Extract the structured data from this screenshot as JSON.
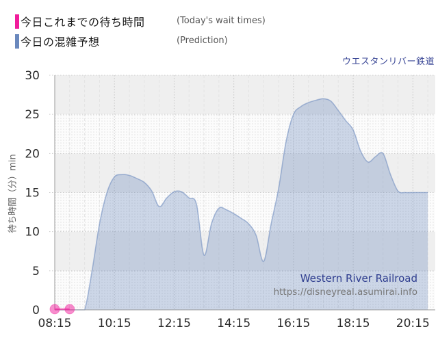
{
  "legend": {
    "items": [
      {
        "label_jp": "今日これまでの待ち時間",
        "label_en": "(Today's wait times)",
        "color": "#f11c9b"
      },
      {
        "label_jp": "今日の混雑予想",
        "label_en": "(Prediction)",
        "color": "#6a88bd"
      }
    ]
  },
  "watermark": {
    "line1": "Western River Railroad",
    "line2": "https://disneyreal.asumirai.info"
  },
  "chart_data": {
    "type": "area",
    "title": "ウエスタンリバー鉄道",
    "ylabel": "待ち時間（分）min",
    "ylim": [
      0,
      30
    ],
    "ytick_interval": 5,
    "yticks": [
      0,
      5,
      10,
      15,
      20,
      25,
      30
    ],
    "x_start": "08:15",
    "x_end": "21:00",
    "xticks": [
      "08:15",
      "10:15",
      "12:15",
      "14:15",
      "16:15",
      "18:15",
      "20:15"
    ],
    "grid": "30min-vertical, 5min-horizontal, alternating bands",
    "legend_position": "top-left",
    "series": [
      {
        "name": "今日これまでの待ち時間 (Today's wait times)",
        "type": "scatter-line",
        "color": "#f11c9b",
        "points": [
          {
            "t": "08:15",
            "v": 0
          },
          {
            "t": "08:45",
            "v": 0
          }
        ]
      },
      {
        "name": "今日の混雑予想 (Prediction)",
        "type": "area",
        "color": "#6a88bd",
        "points": [
          {
            "t": "08:15",
            "v": 0
          },
          {
            "t": "08:30",
            "v": 0
          },
          {
            "t": "08:45",
            "v": 0
          },
          {
            "t": "09:00",
            "v": 0
          },
          {
            "t": "09:15",
            "v": 0
          },
          {
            "t": "09:30",
            "v": 5
          },
          {
            "t": "09:45",
            "v": 11
          },
          {
            "t": "10:00",
            "v": 15
          },
          {
            "t": "10:15",
            "v": 17
          },
          {
            "t": "10:30",
            "v": 17.3
          },
          {
            "t": "10:45",
            "v": 17.2
          },
          {
            "t": "11:00",
            "v": 16.8
          },
          {
            "t": "11:15",
            "v": 16.3
          },
          {
            "t": "11:30",
            "v": 15.2
          },
          {
            "t": "11:45",
            "v": 13.2
          },
          {
            "t": "12:00",
            "v": 14.3
          },
          {
            "t": "12:15",
            "v": 15.1
          },
          {
            "t": "12:30",
            "v": 15.1
          },
          {
            "t": "12:45",
            "v": 14.3
          },
          {
            "t": "13:00",
            "v": 13.5
          },
          {
            "t": "13:15",
            "v": 7
          },
          {
            "t": "13:30",
            "v": 11
          },
          {
            "t": "13:45",
            "v": 13
          },
          {
            "t": "14:00",
            "v": 12.8
          },
          {
            "t": "14:15",
            "v": 12.3
          },
          {
            "t": "14:30",
            "v": 11.7
          },
          {
            "t": "14:45",
            "v": 11
          },
          {
            "t": "15:00",
            "v": 9.5
          },
          {
            "t": "15:15",
            "v": 6.2
          },
          {
            "t": "15:30",
            "v": 11
          },
          {
            "t": "15:45",
            "v": 15.5
          },
          {
            "t": "16:00",
            "v": 21.5
          },
          {
            "t": "16:15",
            "v": 25
          },
          {
            "t": "16:30",
            "v": 26
          },
          {
            "t": "16:45",
            "v": 26.5
          },
          {
            "t": "17:00",
            "v": 26.8
          },
          {
            "t": "17:15",
            "v": 27
          },
          {
            "t": "17:30",
            "v": 26.7
          },
          {
            "t": "17:45",
            "v": 25.5
          },
          {
            "t": "18:00",
            "v": 24.2
          },
          {
            "t": "18:15",
            "v": 23
          },
          {
            "t": "18:30",
            "v": 20.3
          },
          {
            "t": "18:45",
            "v": 18.9
          },
          {
            "t": "19:00",
            "v": 19.6
          },
          {
            "t": "19:15",
            "v": 20
          },
          {
            "t": "19:30",
            "v": 17.3
          },
          {
            "t": "19:45",
            "v": 15.2
          },
          {
            "t": "20:00",
            "v": 15
          },
          {
            "t": "20:15",
            "v": 15
          },
          {
            "t": "20:30",
            "v": 15
          },
          {
            "t": "20:45",
            "v": 15
          }
        ]
      }
    ]
  }
}
